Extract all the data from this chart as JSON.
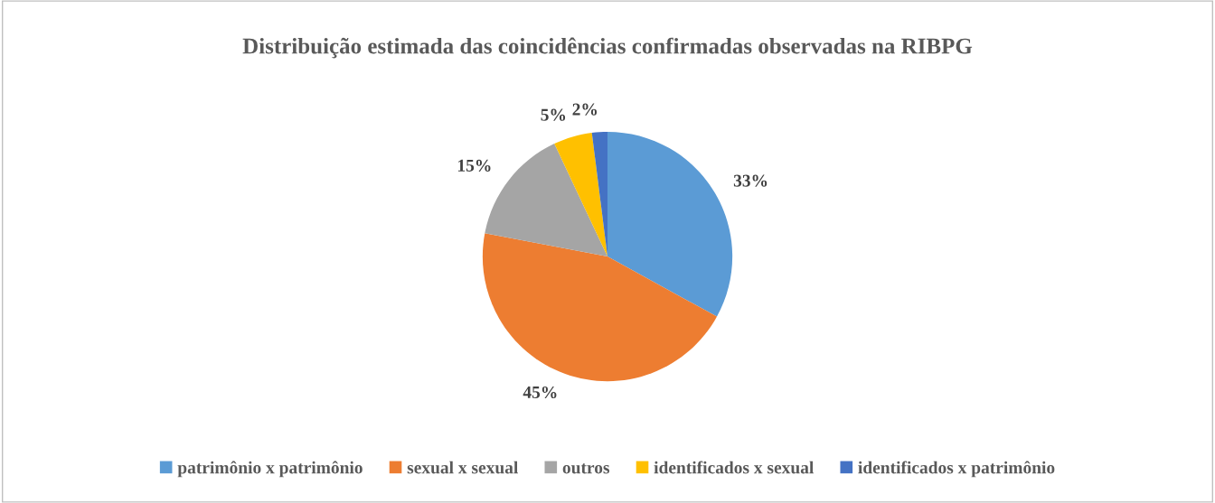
{
  "chart_data": {
    "type": "pie",
    "title": "Distribuição estimada das coincidências confirmadas observadas na RIBPG",
    "categories": [
      "patrimônio x patrimônio",
      "sexual x sexual",
      "outros",
      "identificados x sexual",
      "identificados x patrimônio"
    ],
    "values": [
      33,
      45,
      15,
      5,
      2
    ],
    "colors": [
      "#5b9bd5",
      "#ed7d31",
      "#a5a5a5",
      "#ffc000",
      "#4472c4"
    ],
    "value_labels": [
      "33%",
      "45%",
      "15%",
      "5%",
      "2%"
    ],
    "legend": "bottom"
  }
}
